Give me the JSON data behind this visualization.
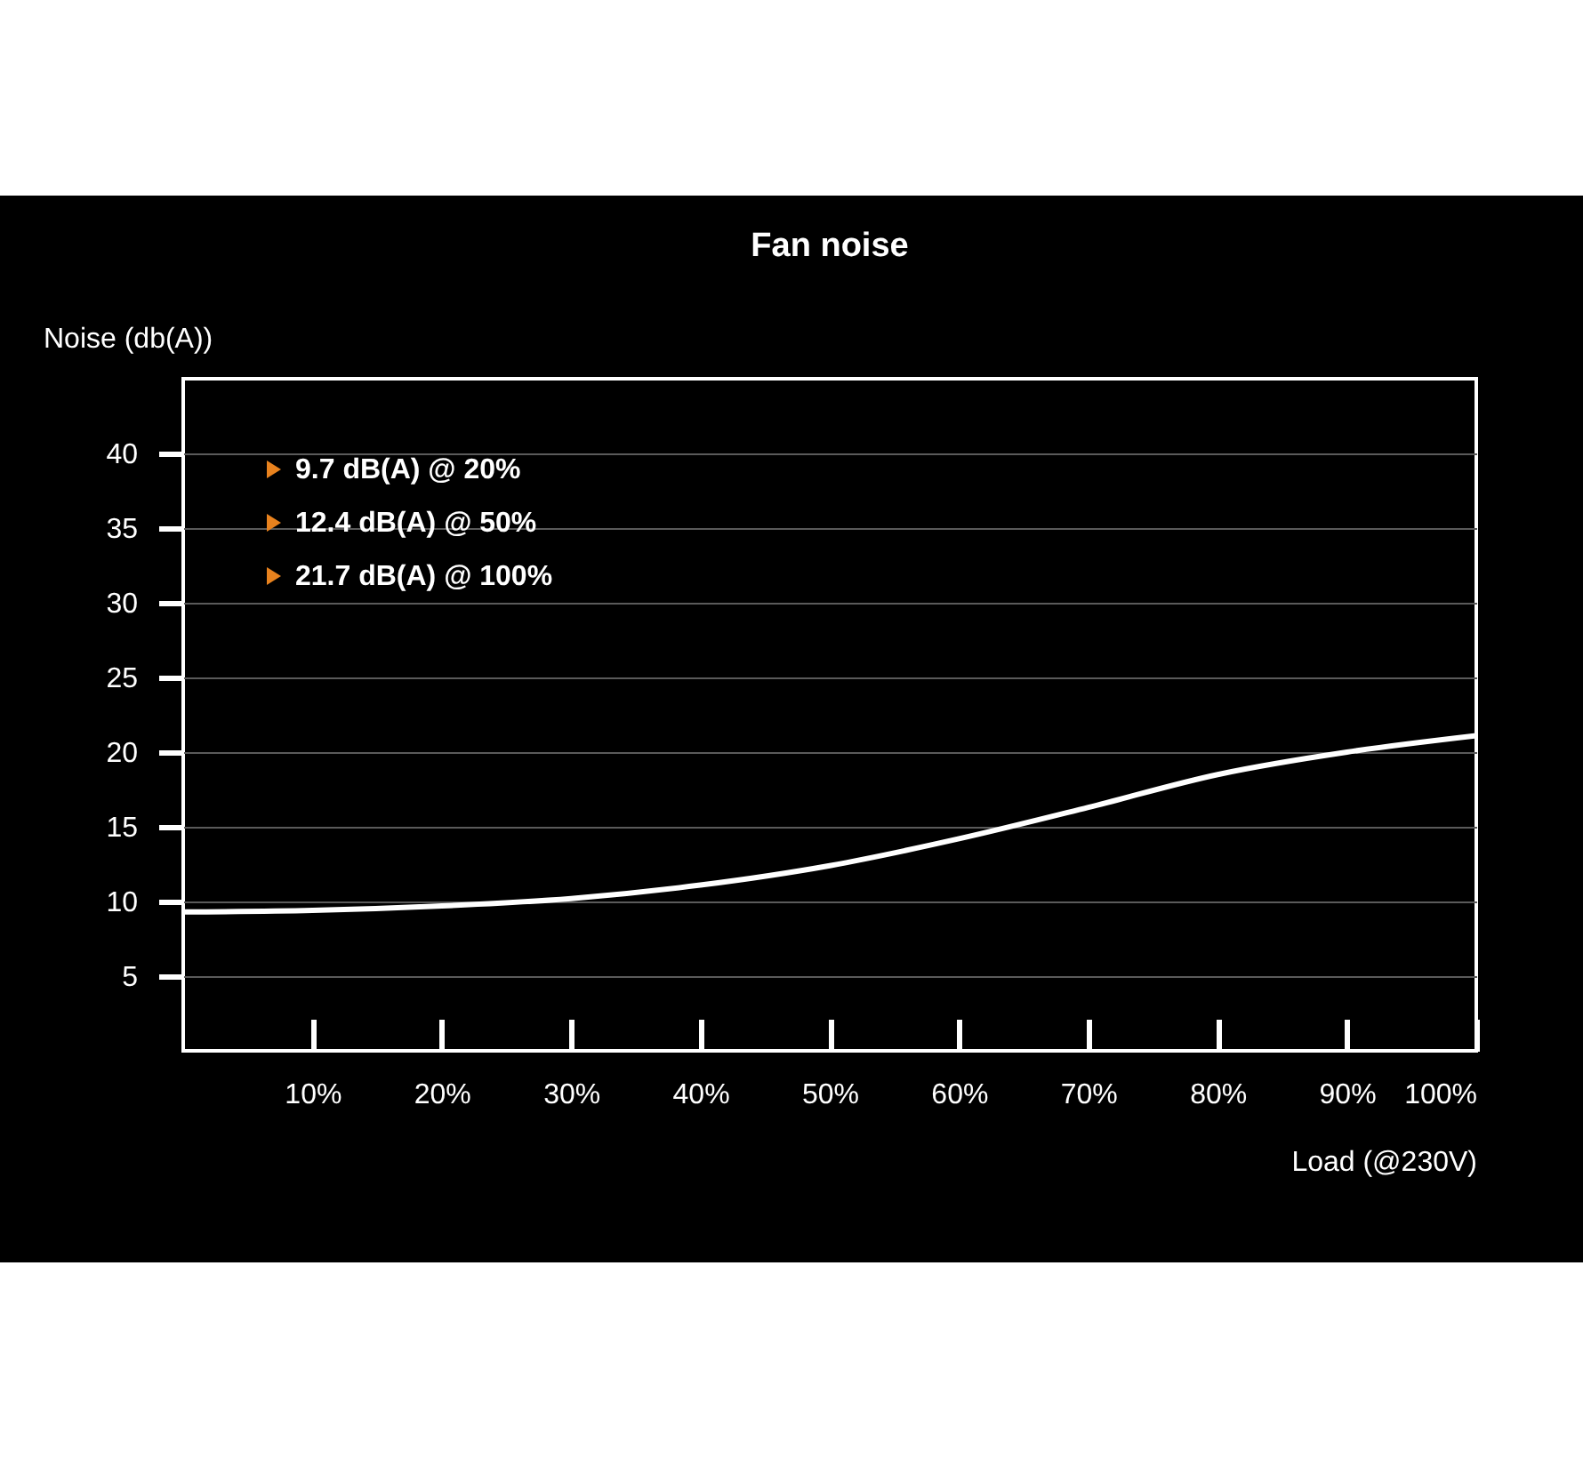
{
  "chart_data": {
    "type": "line",
    "title": "Fan noise",
    "xlabel": "Load (@230V)",
    "ylabel": "Noise (db(A))",
    "x": [
      0,
      10,
      20,
      30,
      40,
      50,
      60,
      70,
      80,
      90,
      100
    ],
    "series": [
      {
        "color": "#ffffff",
        "values": [
          9.3,
          9.4,
          9.7,
          10.2,
          11.1,
          12.4,
          14.2,
          16.3,
          18.5,
          20.0,
          21.1
        ]
      }
    ],
    "xlim": [
      0,
      100
    ],
    "xticks": [
      {
        "value": 10,
        "label": "10%"
      },
      {
        "value": 20,
        "label": "20%"
      },
      {
        "value": 30,
        "label": "30%"
      },
      {
        "value": 40,
        "label": "40%"
      },
      {
        "value": 50,
        "label": "50%"
      },
      {
        "value": 60,
        "label": "60%"
      },
      {
        "value": 70,
        "label": "70%"
      },
      {
        "value": 80,
        "label": "80%"
      },
      {
        "value": 90,
        "label": "90%"
      },
      {
        "value": 100,
        "label": "100%"
      }
    ],
    "ylim": [
      0,
      45
    ],
    "yticks": [
      5,
      10,
      15,
      20,
      25,
      30,
      35,
      40
    ],
    "grid": "y",
    "legend": false,
    "marker": "none",
    "line_style": "solid",
    "annotations": [
      "9.7 dB(A) @ 20%",
      "12.4 dB(A) @ 50%",
      "21.7 dB(A) @ 100%"
    ]
  }
}
